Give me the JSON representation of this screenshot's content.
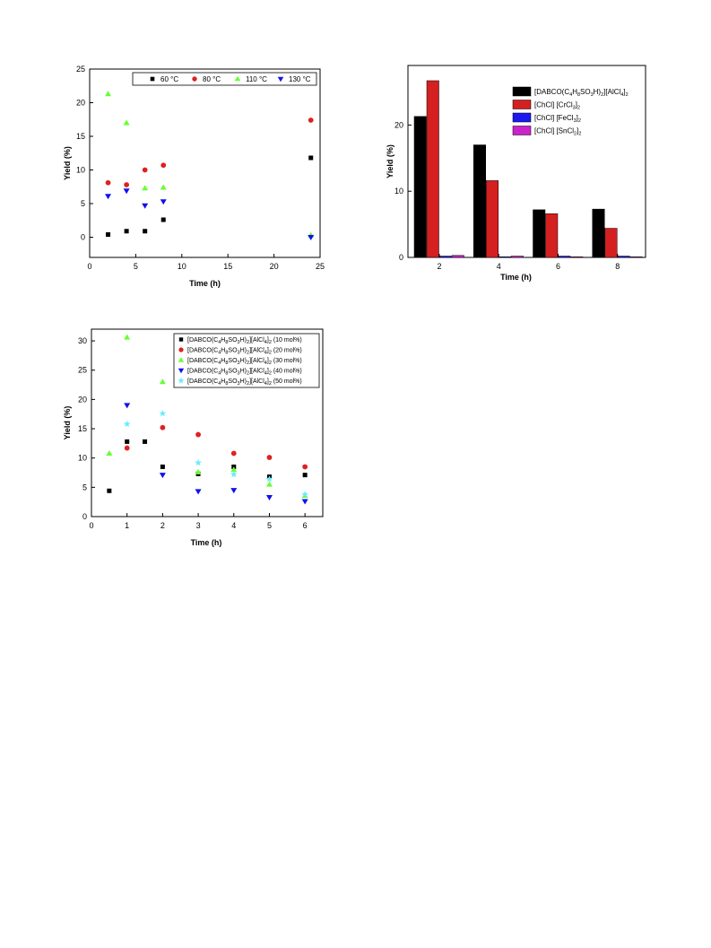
{
  "chart_data": [
    {
      "id": "temp",
      "type": "scatter",
      "xlabel": "Time (h)",
      "ylabel": "Yield (%)",
      "xlim": [
        0,
        25
      ],
      "ylim": [
        -3,
        25
      ],
      "xticks": [
        0,
        5,
        10,
        15,
        20,
        25
      ],
      "yticks": [
        0,
        5,
        10,
        15,
        20,
        25
      ],
      "legend_position": "top",
      "series": [
        {
          "name": "60 °C",
          "color": "#000000",
          "marker": "square",
          "x": [
            2,
            4,
            6,
            8,
            24
          ],
          "y": [
            0.4,
            0.9,
            0.9,
            2.6,
            11.8
          ]
        },
        {
          "name": "80 °C",
          "color": "#e02020",
          "marker": "circle",
          "x": [
            2,
            4,
            6,
            8,
            24
          ],
          "y": [
            8.1,
            7.8,
            10.0,
            10.7,
            17.4
          ]
        },
        {
          "name": "110 °C",
          "color": "#66ff33",
          "marker": "triangle-up",
          "x": [
            2,
            4,
            6,
            8,
            24
          ],
          "y": [
            21.3,
            17.0,
            7.3,
            7.4,
            0.3
          ]
        },
        {
          "name": "130 °C",
          "color": "#1010ee",
          "marker": "triangle-down",
          "x": [
            2,
            4,
            6,
            8,
            24
          ],
          "y": [
            6.1,
            6.9,
            4.7,
            5.3,
            0.0
          ]
        }
      ]
    },
    {
      "id": "catalyst",
      "type": "bar",
      "xlabel": "Time (h)",
      "ylabel": "Yield (%)",
      "categories": [
        "2",
        "4",
        "6",
        "8"
      ],
      "ylim": [
        0,
        29
      ],
      "yticks": [
        0,
        10,
        20
      ],
      "legend_position": "top-right",
      "series": [
        {
          "name_main": "[DABCO(C",
          "name_sub1": "4",
          "name_mid1": "H",
          "name_sub2": "8",
          "name_mid2": "SO",
          "name_sub3": "3",
          "name_mid3": "H)",
          "name_sub4": "2",
          "name_mid4": "][AlCl",
          "name_sub5": "4",
          "name_mid5": "]",
          "name_sub6": "2",
          "color": "#000000",
          "values": [
            21.3,
            17.0,
            7.2,
            7.3
          ]
        },
        {
          "name_main": "[ChCl] [CrCl",
          "name_sub1": "3",
          "name_mid1": "]",
          "name_sub2": "2",
          "color": "#d42020",
          "values": [
            26.7,
            11.6,
            6.6,
            4.4
          ]
        },
        {
          "name_main": "[ChCl] [FeCl",
          "name_sub1": "3",
          "name_mid1": "]",
          "name_sub2": "2",
          "color": "#1a1aee",
          "values": [
            0.2,
            0.1,
            0.2,
            0.2
          ]
        },
        {
          "name_main": "[ChCl] [SnCl",
          "name_sub1": "2",
          "name_mid1": "]",
          "name_sub2": "2",
          "color": "#cc22cc",
          "values": [
            0.3,
            0.2,
            0.1,
            0.1
          ]
        }
      ]
    },
    {
      "id": "loading",
      "type": "scatter",
      "xlabel": "Time (h)",
      "ylabel": "Yield (%)",
      "xlim": [
        0,
        6.5
      ],
      "ylim": [
        0,
        32
      ],
      "xticks": [
        0,
        1,
        2,
        3,
        4,
        5,
        6
      ],
      "yticks": [
        0,
        5,
        10,
        15,
        20,
        25,
        30
      ],
      "legend_position": "top-right",
      "series": [
        {
          "loading": "(10 mol%)",
          "color": "#000000",
          "marker": "square",
          "x": [
            0.5,
            1,
            1.5,
            2,
            3,
            4,
            5,
            6
          ],
          "y": [
            4.4,
            12.8,
            12.8,
            8.5,
            7.3,
            8.5,
            6.8,
            7.1
          ]
        },
        {
          "loading": "(20 mol%)",
          "color": "#e02020",
          "marker": "circle",
          "x": [
            1,
            2,
            3,
            4,
            5,
            6
          ],
          "y": [
            11.7,
            15.2,
            14.0,
            10.8,
            10.1,
            8.5
          ]
        },
        {
          "loading": "(30 mol%)",
          "color": "#66ff33",
          "marker": "triangle-up",
          "x": [
            0.5,
            1,
            2,
            3,
            4,
            5,
            6
          ],
          "y": [
            10.8,
            30.6,
            23.0,
            7.6,
            8.0,
            5.5,
            3.6
          ]
        },
        {
          "loading": "(40 mol%)",
          "color": "#1010ee",
          "marker": "triangle-down",
          "x": [
            1,
            2,
            3,
            4,
            5,
            6
          ],
          "y": [
            19.0,
            7.1,
            4.3,
            4.5,
            3.3,
            2.6
          ]
        },
        {
          "loading": "(50 mol%)",
          "color": "#66eeff",
          "marker": "star",
          "x": [
            1,
            2,
            3,
            4,
            5,
            6
          ],
          "y": [
            15.8,
            17.6,
            9.2,
            7.2,
            6.4,
            3.8
          ]
        }
      ],
      "legend_prefix": {
        "main": "[DABCO(C",
        "sub1": "4",
        "mid1": "H",
        "sub2": "8",
        "mid2": "SO",
        "sub3": "3",
        "mid3": "H)",
        "sub4": "2",
        "mid4": "][AlCl",
        "sub5": "4",
        "mid5": "]",
        "sub6": "2"
      }
    }
  ]
}
